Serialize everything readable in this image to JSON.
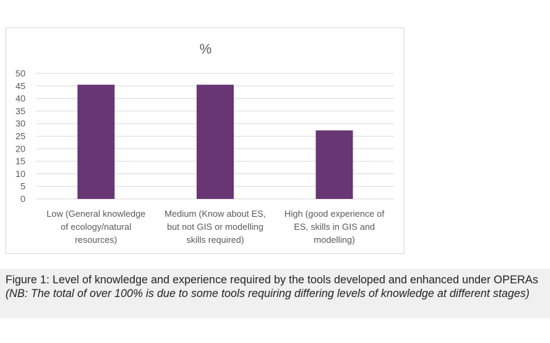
{
  "chart_data": {
    "type": "bar",
    "title": "%",
    "categories": [
      [
        "Low (General knowledge",
        "of ecology/natural",
        "resources)"
      ],
      [
        "Medium (Know about ES,",
        "but not GIS or modelling",
        "skills required)"
      ],
      [
        "High (good experience of",
        "ES, skills in GIS and",
        "modelling)"
      ]
    ],
    "values": [
      45.5,
      45.5,
      27.3
    ],
    "ylim": [
      0,
      50
    ],
    "yticks": [
      0,
      5,
      10,
      15,
      20,
      25,
      30,
      35,
      40,
      45,
      50
    ],
    "grid": true,
    "colors": {
      "bar": "#673673",
      "grid": "#d9d9d9",
      "text": "#595959"
    }
  },
  "caption": {
    "text": "Figure 1: Level of knowledge and experience required by the tools developed and enhanced under OPERAs ",
    "note": "(NB: The total of over 100% is due to some tools requiring differing levels of knowledge at different stages)"
  }
}
